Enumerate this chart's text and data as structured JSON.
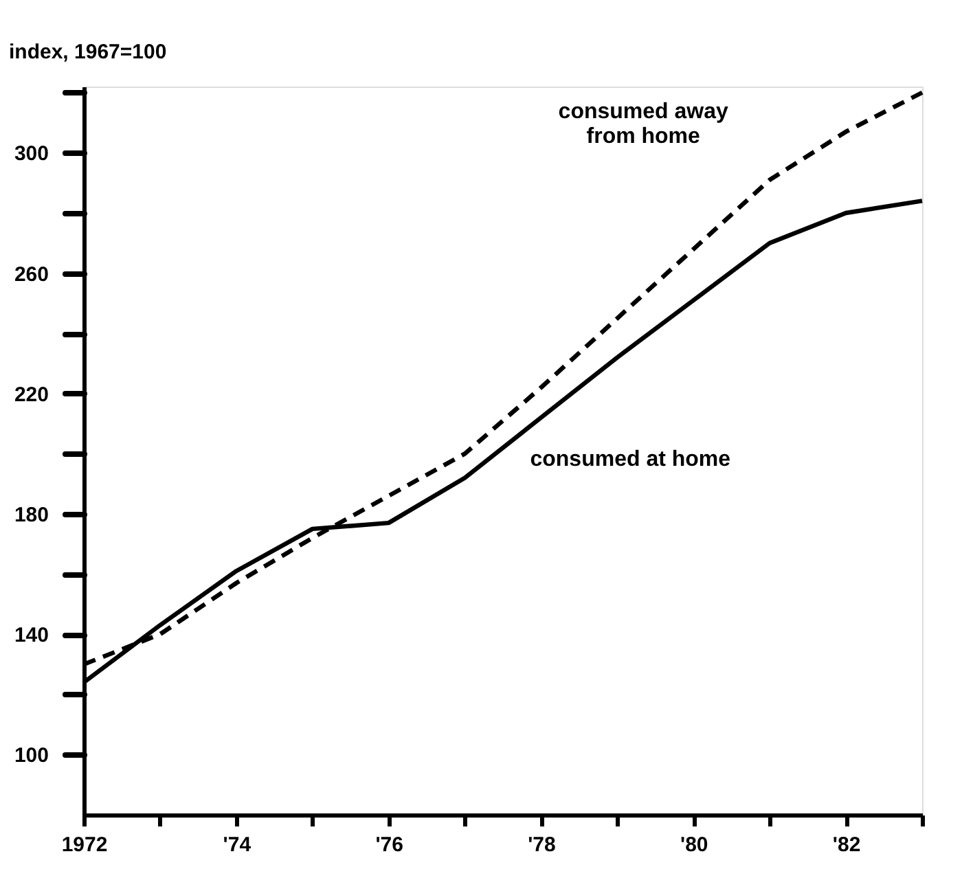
{
  "chart_data": {
    "type": "line",
    "ylabel": "index, 1967=100",
    "x": [
      1972,
      1973,
      1974,
      1975,
      1976,
      1977,
      1978,
      1979,
      1980,
      1981,
      1982,
      1983
    ],
    "series": [
      {
        "name": "consumed at home",
        "color": "#000000",
        "line_style": "solid",
        "values": [
          124,
          143,
          161,
          175,
          177,
          192,
          212,
          232,
          251,
          270,
          280,
          284
        ]
      },
      {
        "name": "consumed away from home",
        "color": "#000000",
        "line_style": "dashed",
        "values": [
          130,
          140,
          157,
          172,
          186,
          200,
          222,
          245,
          268,
          291,
          307,
          320
        ]
      }
    ],
    "xlim": [
      1972,
      1983
    ],
    "xticks": [
      {
        "value": 1972,
        "label": "1972"
      },
      {
        "value": 1973,
        "label": null
      },
      {
        "value": 1974,
        "label": "'74"
      },
      {
        "value": 1975,
        "label": null
      },
      {
        "value": 1976,
        "label": "'76"
      },
      {
        "value": 1977,
        "label": null
      },
      {
        "value": 1978,
        "label": "'78"
      },
      {
        "value": 1979,
        "label": null
      },
      {
        "value": 1980,
        "label": "'80"
      },
      {
        "value": 1981,
        "label": null
      },
      {
        "value": 1982,
        "label": "'82"
      },
      {
        "value": 1983,
        "label": null
      }
    ],
    "ylim": [
      80,
      322
    ],
    "yticks": [
      100,
      {
        "value": 120,
        "label": null
      },
      140,
      {
        "value": 160,
        "label": null
      },
      180,
      {
        "value": 200,
        "label": null
      },
      220,
      {
        "value": 240,
        "label": null
      },
      260,
      {
        "value": 280,
        "label": null
      },
      300,
      {
        "value": 320,
        "label": null
      }
    ],
    "tick_labels": "xy"
  }
}
